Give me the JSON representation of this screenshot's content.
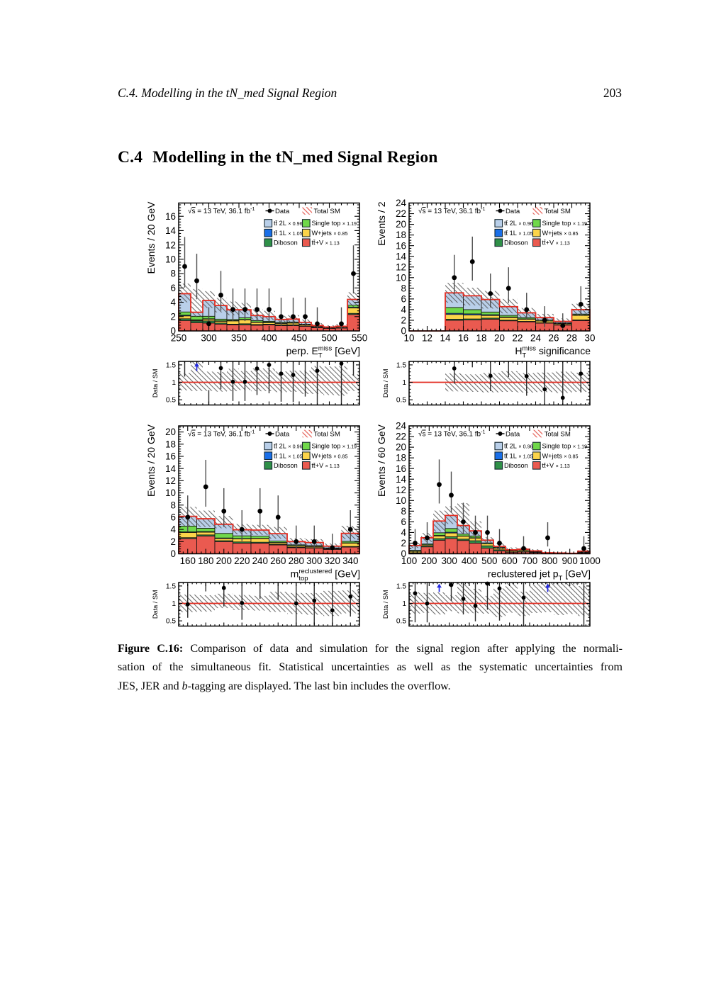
{
  "header": {
    "left": "C.4. Modelling in the tN_med Signal Region",
    "page_number": "203"
  },
  "section": {
    "number": "C.4",
    "title": "Modelling in the tN_med Signal Region"
  },
  "figure": {
    "info": {
      "sqrt_sign": "√",
      "sqrt_arg": "s",
      "rest": " = 13 TeV, 36.1 fb",
      "sup": "-1"
    },
    "legend": {
      "data_label": "Data",
      "total_label": "Total SM",
      "entries": [
        {
          "key": "tt2L",
          "label": "tt̄ 2L",
          "mult": "× 0.96"
        },
        {
          "key": "singletop",
          "label": "Single top",
          "mult": "× 1.19"
        },
        {
          "key": "tt1L",
          "label": "tt̄ 1L",
          "mult": "× 1.05"
        },
        {
          "key": "wjets",
          "label": "W+jets",
          "mult": "× 0.85"
        },
        {
          "key": "diboson",
          "label": "Diboson",
          "mult": ""
        },
        {
          "key": "ttV",
          "label": "tt̄+V",
          "mult": "× 1.13"
        }
      ]
    },
    "colors": {
      "tt2L": "#b9cfe9",
      "singletop": "#70d84a",
      "tt1L": "#1a6fe8",
      "wjets": "#fbd44a",
      "diboson": "#2f9048",
      "ttV": "#ea5a50",
      "edge": "#111111",
      "total_line": "#e32d22",
      "ratio_line": "#e32d22",
      "hatch": "#4f4f4f",
      "legend_hatch": "#e0443a",
      "data_marker": "#000000",
      "error_bar": "#4d4d4d",
      "arrow": "#2228e0",
      "frame": "#000000"
    },
    "stack_order": [
      "ttV",
      "diboson",
      "wjets",
      "tt1L",
      "singletop",
      "tt2L"
    ],
    "ratio_ylabel": "Data / SM",
    "poisson_errors": {
      "0": [
        0,
        1.84
      ],
      "1": [
        0.17,
        3.3
      ],
      "2": [
        0.71,
        4.64
      ],
      "3": [
        1.37,
        5.92
      ],
      "4": [
        2.09,
        7.16
      ],
      "5": [
        2.84,
        8.38
      ],
      "6": [
        3.62,
        9.58
      ],
      "7": [
        4.42,
        10.77
      ],
      "8": [
        5.23,
        11.94
      ],
      "9": [
        6.06,
        13.11
      ],
      "10": [
        6.89,
        14.27
      ],
      "11": [
        7.73,
        15.42
      ],
      "12": [
        8.59,
        16.56
      ],
      "13": [
        9.44,
        17.7
      ]
    }
  },
  "chart_data": [
    {
      "type": "bar",
      "subtype": "stacked_histogram_with_ratio",
      "id": "perp-etmiss",
      "ylabel": "Events / 20 GeV",
      "xlabel_tokens": [
        {
          "n": "perp. E"
        },
        {
          "sup": "miss",
          "sub": "T"
        },
        {
          "n": " [GeV]"
        }
      ],
      "xmin": 250,
      "xmax": 550,
      "bin_width": 20,
      "x_ticks": [
        250,
        300,
        350,
        400,
        450,
        500,
        550
      ],
      "x_minor": 10,
      "ymax": 17.85,
      "y_ticks": [
        0,
        2,
        4,
        6,
        8,
        10,
        12,
        14,
        16
      ],
      "y_minor": 0.4,
      "stack": {
        "ttV": [
          1.45,
          1.15,
          1.1,
          0.95,
          0.85,
          0.85,
          0.8,
          0.85,
          0.75,
          0.75,
          0.65,
          0.45,
          0.35,
          0.4,
          2.3
        ],
        "diboson": [
          0.25,
          0.25,
          0.3,
          0.15,
          0.1,
          0.15,
          0.1,
          0.1,
          0.1,
          0.1,
          0.05,
          0.05,
          0.03,
          0.04,
          0.15
        ],
        "wjets": [
          0.4,
          0.1,
          0.25,
          0.25,
          0.45,
          0.55,
          0.3,
          0.2,
          0.2,
          0.25,
          0.15,
          0.1,
          0.07,
          0.1,
          0.75
        ],
        "tt1L": [
          0.1,
          0.05,
          0.05,
          0.05,
          0.05,
          0.05,
          0.05,
          0.05,
          0.03,
          0.03,
          0.02,
          0.02,
          0.01,
          0.01,
          0.1
        ],
        "singletop": [
          0.45,
          0.5,
          0.35,
          0.25,
          0.15,
          0.25,
          0.2,
          0.15,
          0.12,
          0.12,
          0.08,
          0.05,
          0.04,
          0.04,
          0.3
        ],
        "tt2L": [
          2.55,
          0.55,
          2.2,
          1.9,
          1.35,
          1.1,
          0.7,
          0.65,
          0.4,
          0.4,
          0.25,
          0.08,
          0.05,
          0.06,
          0.8
        ]
      },
      "band_lo": [
        4.0,
        1.95,
        3.2,
        2.6,
        2.2,
        2.3,
        1.6,
        1.5,
        1.15,
        1.2,
        0.8,
        0.5,
        0.35,
        0.4,
        3.3
      ],
      "band_hi": [
        6.6,
        5.85,
        5.55,
        4.6,
        4.1,
        3.9,
        3.0,
        2.8,
        2.1,
        2.2,
        1.6,
        1.1,
        0.8,
        0.95,
        5.4
      ],
      "data": [
        9,
        7,
        1,
        5,
        3,
        3,
        3,
        3,
        2,
        2,
        2,
        1,
        null,
        1,
        8
      ],
      "ratio": {
        "ymin": 0.35,
        "ymax": 1.6,
        "ticks": [
          0.5,
          1,
          1.5
        ],
        "minor": 0.1,
        "line_y": 1
      }
    },
    {
      "type": "bar",
      "subtype": "stacked_histogram_with_ratio",
      "id": "htmiss-significance",
      "ylabel": "Events / 2",
      "xlabel_tokens": [
        {
          "n": "H"
        },
        {
          "sup": "miss",
          "sub": "T"
        },
        {
          "n": " significance"
        }
      ],
      "xmin": 10,
      "xmax": 30,
      "bin_width": 2,
      "x_ticks": [
        10,
        12,
        14,
        16,
        18,
        20,
        22,
        24,
        26,
        28,
        30
      ],
      "x_minor": 0.5,
      "ymax": 24,
      "y_ticks": [
        0,
        2,
        4,
        6,
        8,
        10,
        12,
        14,
        16,
        18,
        20,
        22,
        24
      ],
      "y_minor": 0.5,
      "stack": {
        "ttV": [
          0,
          0,
          2.0,
          2.05,
          2.2,
          1.9,
          1.7,
          1.45,
          1.1,
          1.95
        ],
        "diboson": [
          0,
          0,
          0.2,
          0.2,
          0.2,
          0.12,
          0.1,
          0.08,
          0.07,
          0.12
        ],
        "wjets": [
          0,
          0,
          0.9,
          0.75,
          0.5,
          0.5,
          0.4,
          0.32,
          0.2,
          0.85
        ],
        "tt1L": [
          0,
          0,
          0.2,
          0.2,
          0.15,
          0.1,
          0.07,
          0.05,
          0.04,
          0.1
        ],
        "singletop": [
          0,
          0,
          1.1,
          0.8,
          0.5,
          0.3,
          0.23,
          0.15,
          0.11,
          0.15
        ],
        "tt2L": [
          0,
          0,
          2.75,
          2.6,
          2.35,
          1.63,
          0.9,
          0.45,
          0.28,
          0.83
        ]
      },
      "band_lo": [
        0,
        0,
        5.3,
        4.8,
        4.2,
        3.3,
        2.4,
        1.8,
        1.25,
        2.9
      ],
      "band_hi": [
        0,
        0,
        9.0,
        8.1,
        7.5,
        6.0,
        4.3,
        3.2,
        2.35,
        5.1
      ],
      "data": [
        null,
        null,
        10,
        13,
        7,
        8,
        4,
        2,
        1,
        5
      ],
      "ratio": {
        "ymin": 0.35,
        "ymax": 1.6,
        "ticks": [
          0.5,
          1,
          1.5
        ],
        "minor": 0.1,
        "line_y": 1
      }
    },
    {
      "type": "bar",
      "subtype": "stacked_histogram_with_ratio",
      "id": "mtop-reclustered",
      "ylabel": "Events / 20 GeV",
      "xlabel_tokens": [
        {
          "n": "m"
        },
        {
          "sup": "reclustered",
          "sub": "top"
        },
        {
          "n": " [GeV]"
        }
      ],
      "xmin": 150,
      "xmax": 350,
      "bin_width": 20,
      "x_ticks": [
        160,
        180,
        200,
        220,
        240,
        260,
        280,
        300,
        320,
        340
      ],
      "x_minor": 5,
      "ymax": 21,
      "y_ticks": [
        0,
        2,
        4,
        6,
        8,
        10,
        12,
        14,
        16,
        18,
        20
      ],
      "y_minor": 0.4,
      "stack": {
        "ttV": [
          2.5,
          2.9,
          2.0,
          1.75,
          1.75,
          1.45,
          1.0,
          0.95,
          0.72,
          1.1
        ],
        "diboson": [
          0.15,
          0.2,
          0.15,
          0.2,
          0.15,
          0.1,
          0.1,
          0.06,
          0.05,
          0.1
        ],
        "wjets": [
          0.85,
          0.45,
          0.35,
          0.5,
          0.6,
          0.25,
          0.2,
          0.18,
          0.1,
          0.55
        ],
        "tt1L": [
          0.1,
          0.1,
          0.1,
          0.05,
          0.05,
          0.05,
          0.03,
          0.03,
          0.02,
          0.05
        ],
        "singletop": [
          0.95,
          0.55,
          0.75,
          0.45,
          0.35,
          0.25,
          0.15,
          0.12,
          0.08,
          0.25
        ],
        "tt2L": [
          1.6,
          1.55,
          1.5,
          1.0,
          1.0,
          1.2,
          0.52,
          0.51,
          0.28,
          1.3
        ]
      },
      "band_lo": [
        4.6,
        4.4,
        4.2,
        3.2,
        3.1,
        2.5,
        1.4,
        1.25,
        0.8,
        2.4
      ],
      "band_hi": [
        7.7,
        7.1,
        6.2,
        4.9,
        4.75,
        4.4,
        2.6,
        2.4,
        1.7,
        4.6
      ],
      "data": [
        6,
        11,
        7,
        4,
        7,
        6,
        2,
        2,
        1,
        4
      ],
      "ratio": {
        "ymin": 0.35,
        "ymax": 1.6,
        "ticks": [
          0.5,
          1,
          1.5
        ],
        "minor": 0.1,
        "line_y": 1
      }
    },
    {
      "type": "bar",
      "subtype": "stacked_histogram_with_ratio",
      "id": "reclustered-jet-pt",
      "ylabel": "Events / 60 GeV",
      "xlabel_tokens": [
        {
          "n": "reclustered jet p"
        },
        {
          "sub": "T"
        },
        {
          "n": " [GeV]"
        }
      ],
      "xmin": 100,
      "xmax": 1000,
      "bin_width": 60,
      "x_ticks": [
        100,
        200,
        300,
        400,
        500,
        600,
        700,
        800,
        900,
        1000
      ],
      "x_minor": 20,
      "ymax": 24,
      "y_ticks": [
        0,
        2,
        4,
        6,
        8,
        10,
        12,
        14,
        16,
        18,
        20,
        22,
        24
      ],
      "y_minor": 0.5,
      "stack": {
        "ttV": [
          0.1,
          1.3,
          2.55,
          2.85,
          2.5,
          2.0,
          1.05,
          0.55,
          0.3,
          0.35,
          0.25,
          0.1,
          0.07,
          0.05,
          0.2
        ],
        "diboson": [
          0.1,
          0.15,
          0.3,
          0.35,
          0.25,
          0.45,
          0.45,
          0.2,
          0.05,
          0.06,
          0.03,
          0.01,
          0.01,
          0.01,
          0.02
        ],
        "wjets": [
          0.25,
          0.2,
          0.5,
          0.7,
          0.55,
          0.5,
          0.35,
          0.3,
          0.2,
          0.25,
          0.12,
          0.04,
          0.03,
          0.02,
          0.1
        ],
        "tt1L": [
          0.05,
          0.05,
          0.1,
          0.15,
          0.05,
          0.05,
          0.03,
          0.02,
          0.02,
          0.02,
          0.01,
          0.005,
          0.005,
          0.003,
          0.01
        ],
        "singletop": [
          0.15,
          0.15,
          0.5,
          0.7,
          0.35,
          0.35,
          0.17,
          0.13,
          0.06,
          0.06,
          0.04,
          0.015,
          0.015,
          0.007,
          0.04
        ],
        "tt2L": [
          0.9,
          1.15,
          2.2,
          2.45,
          1.6,
          0.95,
          0.5,
          0.2,
          0.12,
          0.12,
          0.1,
          0.03,
          0.02,
          0.01,
          0.13
        ]
      },
      "band_lo": [
        1.1,
        2.2,
        4.2,
        5.6,
        3.8,
        3.1,
        1.8,
        0.85,
        0.55,
        0.55,
        0.4,
        0.15,
        0.1,
        0.07,
        0.32
      ],
      "band_hi": [
        2.05,
        3.9,
        8.1,
        8.9,
        9.5,
        6.1,
        3.1,
        2.0,
        1.2,
        1.15,
        0.85,
        0.4,
        0.3,
        0.2,
        0.75
      ],
      "data": [
        2,
        3,
        13,
        11,
        6,
        4,
        4,
        2,
        null,
        1,
        null,
        3,
        null,
        null,
        1
      ],
      "ratio": {
        "ymin": 0.35,
        "ymax": 1.6,
        "ticks": [
          0.5,
          1,
          1.5
        ],
        "minor": 0.1,
        "line_y": 1
      }
    }
  ],
  "caption": {
    "lines": [
      {
        "justify": true,
        "parts": [
          {
            "t": "Figure C.16:",
            "b": true
          },
          {
            "t": " Comparison of data and simulation for the signal region after applying the normali-"
          }
        ]
      },
      {
        "justify": true,
        "parts": [
          {
            "t": "sation of the simultaneous fit. Statistical uncertainties as well as the systematic uncertainties from"
          }
        ]
      },
      {
        "justify": false,
        "parts": [
          {
            "t": "JES, JER and "
          },
          {
            "t": "b",
            "i": true
          },
          {
            "t": "-tagging are displayed. The last bin includes the overflow."
          }
        ]
      }
    ]
  }
}
